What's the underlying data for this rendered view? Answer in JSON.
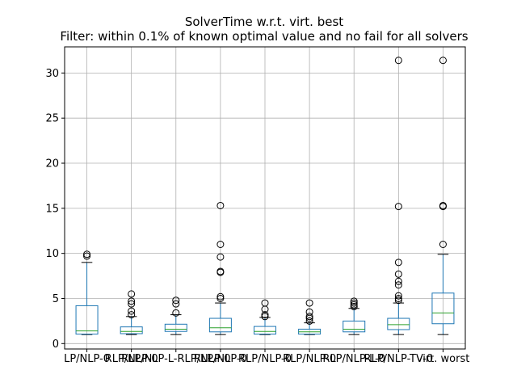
{
  "chart_data": {
    "type": "boxplot",
    "title": "SolverTime w.r.t. virt. best",
    "subtitle": "Filter: within 0.1% of known optimal value and no fail for all solvers",
    "xlabel": "",
    "ylabel": "",
    "ylim": [
      -0.6,
      32.9
    ],
    "yticks": [
      0,
      5,
      10,
      15,
      20,
      25,
      30
    ],
    "grid": true,
    "colors": {
      "box": "#1f77b4",
      "median": "#2ca02c",
      "whisker": "#000000",
      "grid": "#b0b0b0"
    },
    "categories": [
      "LP/NLP-0",
      "LP/NLP-0",
      "LP/NLP-0",
      "LP/NLP-0",
      "LP/NLP-0",
      "LP/NLP-0",
      "LP/NLP-0",
      "LP/NLP-0",
      "virt. worst"
    ],
    "category_labels": [
      "LP/NLP-0",
      "RLP/NLP-0",
      "RLP/NLP-L-RLP/NLP-0",
      "RLP/NLP-0",
      "RLP/NLP-0",
      "RLP/NLP-0",
      "RLP/NLP-L-0",
      "RLP/NLP-TV-0",
      "virt. worst"
    ],
    "series": [
      {
        "name": "LP/NLP-0",
        "whislo": 1.0,
        "q1": 1.05,
        "med": 1.4,
        "q3": 4.2,
        "whishi": 9.0,
        "fliers": [
          9.7,
          9.9
        ]
      },
      {
        "name": "RLP/NLP-0",
        "whislo": 1.0,
        "q1": 1.1,
        "med": 1.35,
        "q3": 1.85,
        "whishi": 3.0,
        "fliers": [
          3.2,
          3.6,
          4.4,
          4.7,
          5.5
        ]
      },
      {
        "name": "RLP/NLP-L-RLP/NLP-0",
        "whislo": 1.0,
        "q1": 1.35,
        "med": 1.6,
        "q3": 2.15,
        "whishi": 3.2,
        "fliers": [
          3.4,
          4.4,
          4.8
        ]
      },
      {
        "name": "RLP/NLP-0 (4)",
        "whislo": 1.0,
        "q1": 1.3,
        "med": 1.75,
        "q3": 2.8,
        "whishi": 4.5,
        "fliers": [
          5.0,
          5.2,
          7.9,
          8.0,
          9.6,
          11.0,
          15.3
        ]
      },
      {
        "name": "RLP/NLP-0 (5)",
        "whislo": 1.0,
        "q1": 1.05,
        "med": 1.35,
        "q3": 1.9,
        "whishi": 2.9,
        "fliers": [
          3.0,
          3.2,
          3.8,
          4.5
        ]
      },
      {
        "name": "RLP/NLP-0 (6)",
        "whislo": 1.0,
        "q1": 1.05,
        "med": 1.3,
        "q3": 1.6,
        "whishi": 2.3,
        "fliers": [
          2.5,
          2.8,
          3.0,
          3.5,
          4.5
        ]
      },
      {
        "name": "RLP/NLP-L-0",
        "whislo": 1.0,
        "q1": 1.3,
        "med": 1.6,
        "q3": 2.5,
        "whishi": 3.9,
        "fliers": [
          4.1,
          4.3,
          4.5,
          4.7
        ]
      },
      {
        "name": "RLP/NLP-TV-0",
        "whislo": 1.0,
        "q1": 1.55,
        "med": 2.1,
        "q3": 2.8,
        "whishi": 4.5,
        "fliers": [
          4.8,
          5.0,
          5.3,
          6.5,
          6.9,
          7.7,
          9.0,
          15.2,
          31.4
        ]
      },
      {
        "name": "virt. worst",
        "whislo": 1.0,
        "q1": 2.2,
        "med": 3.4,
        "q3": 5.6,
        "whishi": 9.9,
        "fliers": [
          11.0,
          15.2,
          15.3,
          31.4
        ]
      }
    ]
  }
}
